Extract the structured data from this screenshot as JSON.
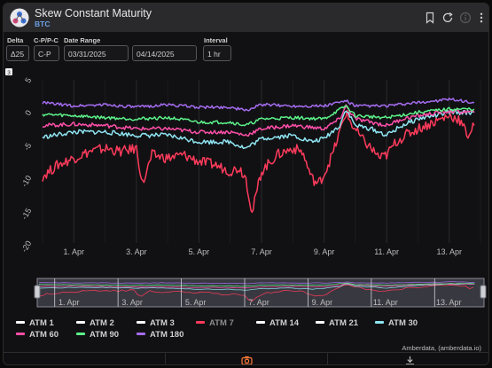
{
  "header": {
    "title": "Skew Constant Maturity",
    "subtitle": "BTC",
    "icons": [
      "bookmark-icon",
      "refresh-icon",
      "info-icon",
      "more-vertical-icon"
    ]
  },
  "controls": {
    "delta": {
      "label": "Delta",
      "value": "Δ25"
    },
    "cpc": {
      "label": "C-P/P-C",
      "value": "C-P"
    },
    "date_range": {
      "label": "Date Range",
      "start": "03/31/2025",
      "end": "04/14/2025"
    },
    "interval": {
      "label": "Interval",
      "value": "1 hr"
    }
  },
  "chart_badge": "3",
  "chart_data": {
    "type": "line",
    "x_tick_labels": [
      "1. Apr",
      "3. Apr",
      "5. Apr",
      "7. Apr",
      "9. Apr",
      "11. Apr",
      "13. Apr"
    ],
    "y_tick_labels": [
      "5",
      "0",
      "-5",
      "-10",
      "-15",
      "-20"
    ],
    "ylim": [
      -20,
      5
    ],
    "xlim_days": [
      0,
      14
    ],
    "grid": true,
    "legend_position": "bottom",
    "series": [
      {
        "name": "ATM 1",
        "color": "#ffffff",
        "visible": false
      },
      {
        "name": "ATM 2",
        "color": "#ffffff",
        "visible": false
      },
      {
        "name": "ATM 3",
        "color": "#ffffff",
        "visible": false
      },
      {
        "name": "ATM 7",
        "color": "#ff3b5c",
        "visible": true,
        "values": [
          [
            0.0,
            -9.8
          ],
          [
            0.5,
            -8.0
          ],
          [
            1.0,
            -7.0
          ],
          [
            1.5,
            -6.0
          ],
          [
            2.0,
            -5.5
          ],
          [
            2.5,
            -6.0
          ],
          [
            3.0,
            -5.5
          ],
          [
            3.2,
            -11.0
          ],
          [
            3.5,
            -6.5
          ],
          [
            4.0,
            -7.0
          ],
          [
            4.5,
            -6.5
          ],
          [
            5.0,
            -7.5
          ],
          [
            5.5,
            -8.0
          ],
          [
            6.0,
            -9.0
          ],
          [
            6.3,
            -8.5
          ],
          [
            6.5,
            -10.0
          ],
          [
            6.7,
            -15.5
          ],
          [
            6.9,
            -11.0
          ],
          [
            7.0,
            -9.0
          ],
          [
            7.5,
            -6.5
          ],
          [
            8.0,
            -5.5
          ],
          [
            8.3,
            -6.0
          ],
          [
            8.6,
            -10.0
          ],
          [
            8.8,
            -11.0
          ],
          [
            9.0,
            -9.5
          ],
          [
            9.3,
            -6.0
          ],
          [
            9.5,
            -3.0
          ],
          [
            9.7,
            0.0
          ],
          [
            9.9,
            -2.0
          ],
          [
            10.2,
            -4.0
          ],
          [
            10.5,
            -5.5
          ],
          [
            10.8,
            -7.0
          ],
          [
            11.0,
            -6.5
          ],
          [
            11.3,
            -4.5
          ],
          [
            11.6,
            -3.5
          ],
          [
            12.0,
            -2.5
          ],
          [
            12.5,
            -1.5
          ],
          [
            13.0,
            -0.5
          ],
          [
            13.3,
            -1.0
          ],
          [
            13.6,
            -3.5
          ],
          [
            13.8,
            -2.0
          ]
        ]
      },
      {
        "name": "ATM 14",
        "color": "#ffffff",
        "visible": false
      },
      {
        "name": "ATM 21",
        "color": "#ffffff",
        "visible": false
      },
      {
        "name": "ATM 30",
        "color": "#8fe4f2",
        "visible": true,
        "values": [
          [
            0.0,
            -3.8
          ],
          [
            1.0,
            -3.0
          ],
          [
            2.0,
            -3.0
          ],
          [
            3.0,
            -3.5
          ],
          [
            4.0,
            -3.5
          ],
          [
            5.0,
            -4.5
          ],
          [
            6.0,
            -4.5
          ],
          [
            6.5,
            -5.5
          ],
          [
            7.0,
            -4.0
          ],
          [
            8.0,
            -3.5
          ],
          [
            8.6,
            -4.5
          ],
          [
            9.0,
            -4.0
          ],
          [
            9.5,
            -2.0
          ],
          [
            9.7,
            0.5
          ],
          [
            10.0,
            -2.0
          ],
          [
            10.5,
            -2.5
          ],
          [
            11.0,
            -3.5
          ],
          [
            11.5,
            -2.0
          ],
          [
            12.0,
            -1.0
          ],
          [
            13.0,
            0.0
          ],
          [
            13.8,
            0.0
          ]
        ]
      },
      {
        "name": "ATM 60",
        "color": "#ff4fa8",
        "visible": true,
        "values": [
          [
            0.0,
            -2.0
          ],
          [
            1.0,
            -1.8
          ],
          [
            2.0,
            -2.0
          ],
          [
            3.0,
            -2.5
          ],
          [
            4.0,
            -2.5
          ],
          [
            5.0,
            -3.0
          ],
          [
            6.0,
            -3.0
          ],
          [
            6.5,
            -3.5
          ],
          [
            7.0,
            -2.5
          ],
          [
            8.0,
            -2.0
          ],
          [
            9.0,
            -2.5
          ],
          [
            9.5,
            -1.0
          ],
          [
            9.7,
            1.0
          ],
          [
            10.0,
            -1.0
          ],
          [
            10.5,
            -1.5
          ],
          [
            11.0,
            -2.0
          ],
          [
            11.5,
            -1.0
          ],
          [
            12.0,
            -0.5
          ],
          [
            13.0,
            0.2
          ],
          [
            13.8,
            0.0
          ]
        ]
      },
      {
        "name": "ATM 90",
        "color": "#5cf28a",
        "visible": true,
        "values": [
          [
            0.0,
            -0.3
          ],
          [
            1.0,
            -0.5
          ],
          [
            2.0,
            -0.8
          ],
          [
            3.0,
            -1.0
          ],
          [
            4.0,
            -0.8
          ],
          [
            5.0,
            -1.5
          ],
          [
            6.0,
            -1.5
          ],
          [
            6.5,
            -2.0
          ],
          [
            7.0,
            -1.0
          ],
          [
            8.0,
            -0.8
          ],
          [
            9.0,
            -1.0
          ],
          [
            9.7,
            1.0
          ],
          [
            10.0,
            -0.5
          ],
          [
            11.0,
            -0.8
          ],
          [
            12.0,
            0.0
          ],
          [
            13.0,
            0.5
          ],
          [
            13.8,
            0.5
          ]
        ]
      },
      {
        "name": "ATM 180",
        "color": "#a56cf0",
        "visible": true,
        "values": [
          [
            0.0,
            1.5
          ],
          [
            1.0,
            1.0
          ],
          [
            2.0,
            1.2
          ],
          [
            3.0,
            0.8
          ],
          [
            4.0,
            1.2
          ],
          [
            5.0,
            0.8
          ],
          [
            6.0,
            0.8
          ],
          [
            6.5,
            0.3
          ],
          [
            7.0,
            1.2
          ],
          [
            8.0,
            1.0
          ],
          [
            9.0,
            1.0
          ],
          [
            9.7,
            1.8
          ],
          [
            10.0,
            1.0
          ],
          [
            11.0,
            1.0
          ],
          [
            12.0,
            1.5
          ],
          [
            13.0,
            2.0
          ],
          [
            13.8,
            1.5
          ]
        ]
      }
    ]
  },
  "navigator": {
    "tick_labels": [
      "1. Apr",
      "3. Apr",
      "5. Apr",
      "7. Apr",
      "9. Apr",
      "11. Apr",
      "13. Apr"
    ]
  },
  "credit": "Amberdata, (amberdata.io)",
  "footer": {
    "icons": [
      "camera-icon",
      "download-icon"
    ]
  }
}
